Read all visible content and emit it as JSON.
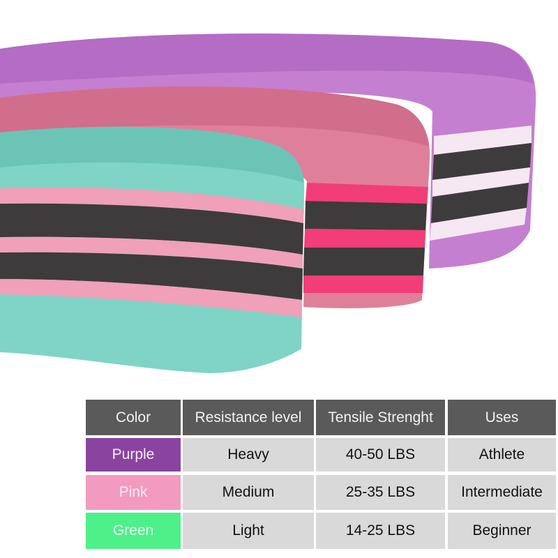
{
  "product_photo": {
    "subject": "fabric resistance bands",
    "colors": {
      "purple": "#c57fd0",
      "pink": "#e07f9a",
      "green": "#7fd4c6",
      "dark_stripe": "#3e3b3d",
      "hot_pink": "#f23d78",
      "light_pink": "#f0a0b8",
      "white_stripe": "#f5e8f2"
    }
  },
  "table": {
    "headers": [
      "Color",
      "Resistance level",
      "Tensile Strenght",
      "Uses"
    ],
    "header_bg": "#5a5a5a",
    "cell_bg": "#d9d9d9",
    "rows": [
      {
        "color": "Purple",
        "swatch": "#8a44a0",
        "resistance": "Heavy",
        "tensile": "40-50 LBS",
        "uses": "Athlete"
      },
      {
        "color": "Pink",
        "swatch": "#f39ac0",
        "resistance": "Medium",
        "tensile": "25-35 LBS",
        "uses": "Intermediate"
      },
      {
        "color": "Green",
        "swatch": "#4ef08a",
        "resistance": "Light",
        "tensile": "14-25 LBS",
        "uses": "Beginner"
      }
    ]
  }
}
